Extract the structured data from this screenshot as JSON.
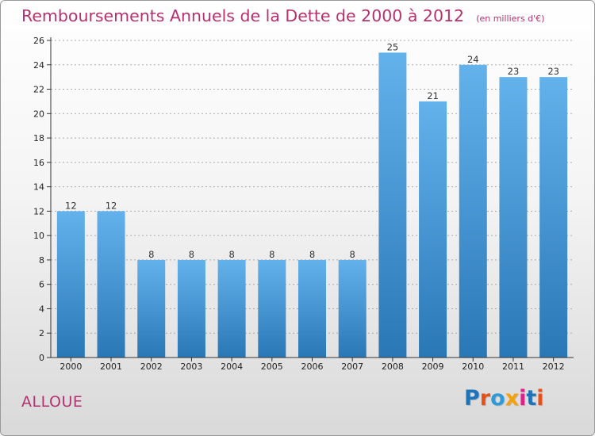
{
  "title": "Remboursements Annuels de la Dette de 2000 à 2012",
  "subtitle": "(en milliers d'€)",
  "commune": "ALLOUE",
  "logo": {
    "text": "Proxiti",
    "letters": [
      "P",
      "r",
      "o",
      "x",
      "i",
      "t",
      "i"
    ],
    "colors": [
      "#1f73b8",
      "#e8501a",
      "#2f9ad6",
      "#f2a20c",
      "#e0208a",
      "#1f73b8",
      "#e8501a"
    ]
  },
  "colors": {
    "title": "#b5316f",
    "bar_top": "#63b2ec",
    "bar_bottom": "#2a77b6",
    "axis": "#333333",
    "grid": "#aaaaaa"
  },
  "chart_data": {
    "type": "bar",
    "categories": [
      "2000",
      "2001",
      "2002",
      "2003",
      "2004",
      "2005",
      "2006",
      "2007",
      "2008",
      "2009",
      "2010",
      "2011",
      "2012"
    ],
    "values": [
      12,
      12,
      8,
      8,
      8,
      8,
      8,
      8,
      25,
      21,
      24,
      23,
      23
    ],
    "data_labels": [
      "12",
      "12",
      "8",
      "8",
      "8",
      "8",
      "8",
      "8",
      "25",
      "21",
      "24",
      "23",
      "23"
    ],
    "y_ticks": [
      "0",
      "2",
      "4",
      "6",
      "8",
      "10",
      "12",
      "14",
      "16",
      "18",
      "20",
      "22",
      "24",
      "26"
    ],
    "ylim": [
      0,
      26
    ],
    "grid": true,
    "legend": "none"
  }
}
